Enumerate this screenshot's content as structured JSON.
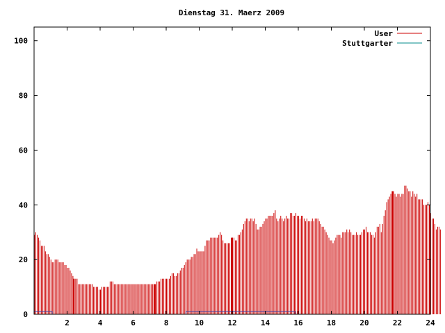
{
  "chart_data": {
    "type": "bar",
    "title": "Dienstag 31. Maerz 2009",
    "xlabel": "",
    "ylabel": "",
    "xlim": [
      0,
      24
    ],
    "ylim": [
      0,
      105
    ],
    "x_ticks": [
      2,
      4,
      6,
      8,
      10,
      12,
      14,
      16,
      18,
      20,
      22,
      24
    ],
    "y_ticks": [
      0,
      20,
      40,
      60,
      80,
      100
    ],
    "x_tick_labels": [
      "2",
      "4",
      "6",
      "8",
      "10",
      "12",
      "14",
      "16",
      "18",
      "20",
      "22",
      "24"
    ],
    "y_tick_labels": [
      "0",
      "20",
      "40",
      "60",
      "80",
      "100"
    ],
    "legend_position": "top-right",
    "grid": false,
    "series": [
      {
        "name": "User",
        "color": "#cc0000",
        "interval_minutes": 5,
        "values": [
          29,
          30,
          29,
          28,
          27,
          25,
          25,
          25,
          23,
          22,
          22,
          21,
          20,
          19,
          19,
          20,
          20,
          20,
          19,
          19,
          19,
          19,
          18,
          18,
          17,
          17,
          16,
          15,
          14,
          13,
          13,
          13,
          11,
          11,
          11,
          11,
          11,
          11,
          11,
          11,
          11,
          11,
          11,
          10,
          10,
          10,
          10,
          9,
          9,
          10,
          10,
          10,
          10,
          10,
          10,
          12,
          12,
          12,
          11,
          11,
          11,
          11,
          11,
          11,
          11,
          11,
          11,
          11,
          11,
          11,
          11,
          11,
          11,
          11,
          11,
          11,
          11,
          11,
          11,
          11,
          11,
          11,
          11,
          11,
          11,
          11,
          11,
          11,
          11,
          12,
          12,
          12,
          13,
          13,
          13,
          13,
          13,
          13,
          13,
          14,
          15,
          15,
          14,
          14,
          15,
          15,
          16,
          17,
          17,
          18,
          19,
          20,
          20,
          20,
          21,
          21,
          22,
          22,
          24,
          23,
          23,
          23,
          23,
          23,
          25,
          27,
          27,
          27,
          28,
          28,
          28,
          28,
          28,
          28,
          29,
          30,
          29,
          27,
          26,
          26,
          26,
          26,
          26,
          28,
          28,
          28,
          27,
          27,
          29,
          29,
          30,
          31,
          33,
          34,
          35,
          35,
          34,
          35,
          35,
          34,
          35,
          33,
          31,
          31,
          32,
          32,
          33,
          34,
          35,
          35,
          36,
          36,
          36,
          36,
          37,
          38,
          35,
          34,
          35,
          36,
          35,
          34,
          35,
          36,
          35,
          35,
          37,
          37,
          36,
          36,
          37,
          36,
          36,
          35,
          36,
          36,
          35,
          34,
          35,
          34,
          34,
          34,
          35,
          34,
          35,
          35,
          35,
          34,
          33,
          32,
          32,
          31,
          30,
          29,
          28,
          27,
          27,
          26,
          27,
          28,
          29,
          29,
          29,
          28,
          30,
          30,
          30,
          31,
          30,
          31,
          30,
          29,
          29,
          29,
          30,
          29,
          29,
          29,
          30,
          31,
          31,
          32,
          30,
          30,
          30,
          29,
          29,
          28,
          30,
          32,
          32,
          33,
          30,
          33,
          36,
          38,
          41,
          42,
          43,
          44,
          45,
          45,
          44,
          43,
          44,
          44,
          43,
          44,
          44,
          47,
          47,
          46,
          45,
          45,
          43,
          45,
          44,
          43,
          44,
          42,
          42,
          42,
          42,
          40,
          40,
          40,
          41,
          40,
          37,
          35,
          35,
          33,
          31,
          32,
          32,
          31
        ]
      },
      {
        "name": "Stuttgarter",
        "color": "#008b8b",
        "segments": [
          {
            "x_start": 0.0,
            "x_end": 1.1,
            "value": 1
          },
          {
            "x_start": 9.2,
            "x_end": 15.8,
            "value": 1
          }
        ]
      }
    ],
    "highlighted_x": [
      2.4,
      7.3,
      12.0,
      21.7
    ]
  }
}
